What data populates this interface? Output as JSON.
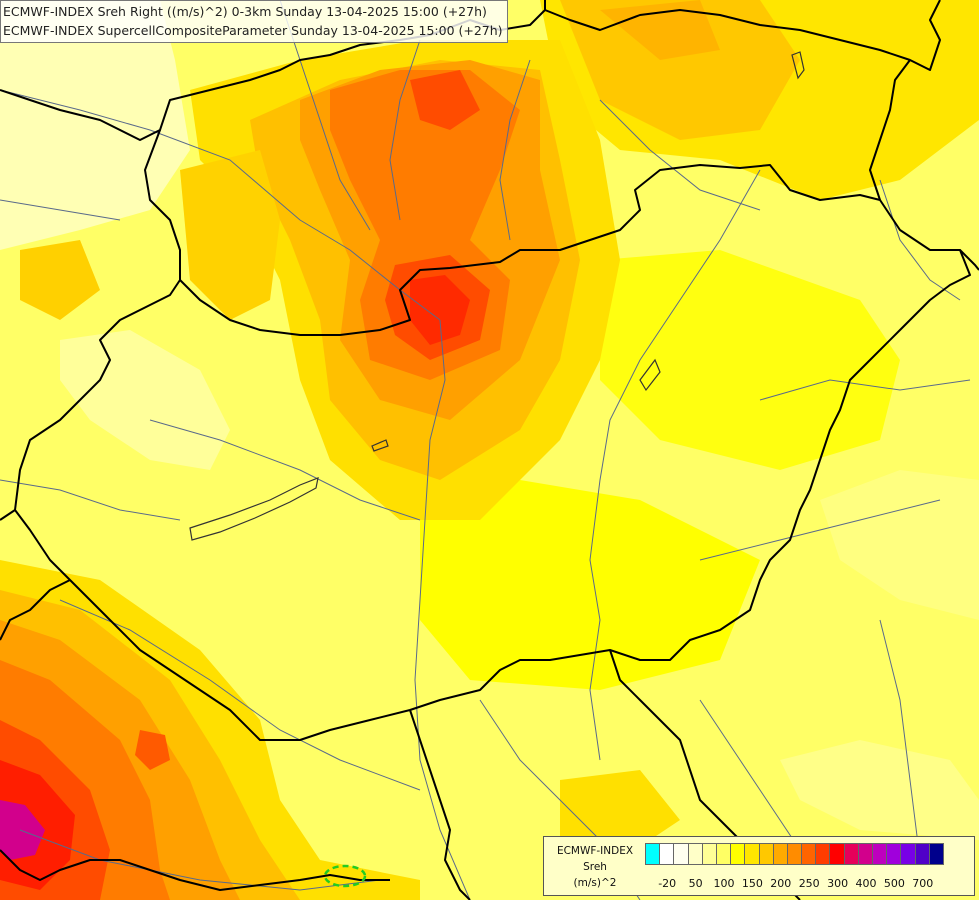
{
  "title": {
    "line1": "ECMWF-INDEX Sreh Right ((m/s)^2) 0-3km Sunday 13-04-2025 15:00 (+27h)",
    "line2": "ECMWF-INDEX SupercellCompositeParameter Sunday 13-04-2025 15:00 (+27h)"
  },
  "legend": {
    "line1": "ECMWF-INDEX",
    "line2": "Sreh",
    "line3": "(m/s)^2",
    "colors": [
      "#00ffff",
      "#ffffff",
      "#fffff0",
      "#ffffc8",
      "#ffff96",
      "#ffff64",
      "#ffff00",
      "#ffe600",
      "#ffc800",
      "#ffaa00",
      "#ff8c00",
      "#ff6400",
      "#ff3c00",
      "#ff0000",
      "#e6005a",
      "#d2008c",
      "#be00be",
      "#a000dc",
      "#7800e6",
      "#5000c8",
      "#00008c"
    ],
    "ticks": [
      "-20",
      "50",
      "100",
      "150",
      "200",
      "250",
      "300",
      "400",
      "500",
      "700"
    ]
  },
  "map": {
    "colors": {
      "pale": "#ffffa8",
      "light": "#ffff78",
      "yellow": "#ffff00",
      "gold": "#ffe600",
      "amber": "#ffc800",
      "orange": "#ffa000",
      "dark_orange": "#ff7800",
      "red_orange": "#ff4c00",
      "red": "#ff1e00",
      "magenta": "#d2008c",
      "border": "#000000",
      "river": "#5a6a8a",
      "scp_contour": "#22cc22"
    }
  }
}
